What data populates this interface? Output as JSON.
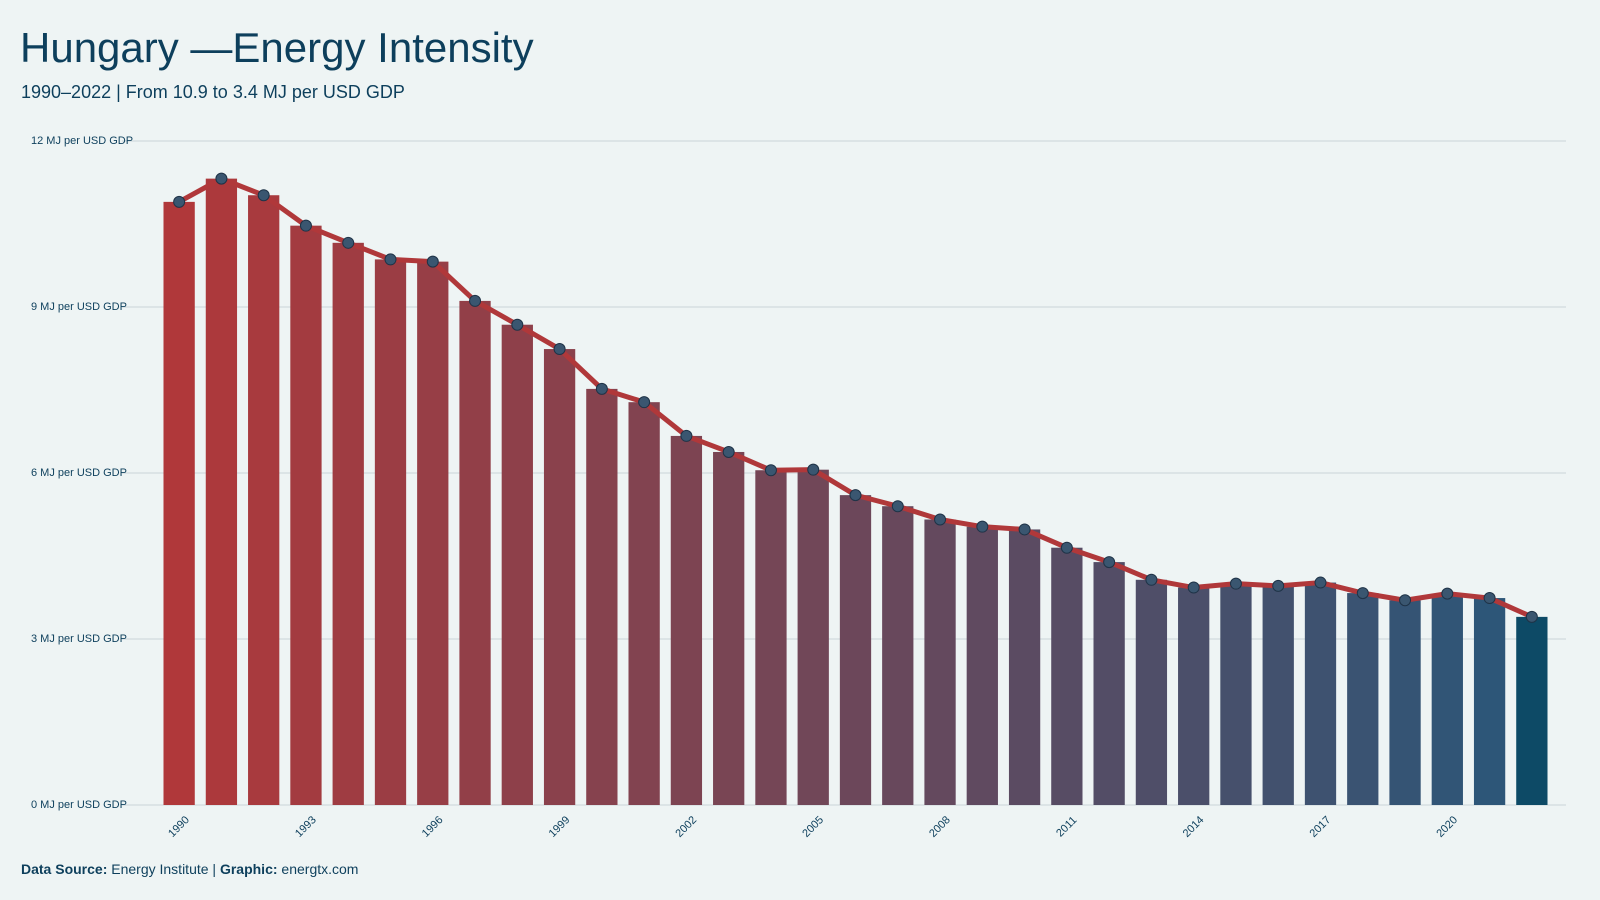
{
  "chart_data": {
    "type": "bar",
    "title": "Hungary —Energy Intensity",
    "subtitle": "1990–2022 | From 10.9 to 3.4 MJ per USD GDP",
    "categories": [
      "1990",
      null,
      null,
      "1993",
      null,
      null,
      "1996",
      null,
      null,
      "1999",
      null,
      null,
      "2002",
      null,
      null,
      "2005",
      null,
      null,
      "2008",
      null,
      null,
      "2011",
      null,
      null,
      "2014",
      null,
      null,
      "2017",
      null,
      null,
      "2020",
      null,
      null
    ],
    "values": [
      10.9,
      11.32,
      11.02,
      10.47,
      10.16,
      9.86,
      9.82,
      9.11,
      8.68,
      8.24,
      7.52,
      7.28,
      6.67,
      6.38,
      6.05,
      6.06,
      5.6,
      5.4,
      5.16,
      5.03,
      4.98,
      4.65,
      4.39,
      4.07,
      3.93,
      4.0,
      3.96,
      4.02,
      3.83,
      3.7,
      3.82,
      3.74,
      3.4
    ],
    "bar_color_start": "#b0383a",
    "bar_color_end": "#2d5678",
    "last_bar_color": "#0d4a66",
    "line_color": "#b0383a",
    "marker_color": "#3a5670",
    "ylim": [
      0,
      12
    ],
    "yticks": [
      {
        "value": 0,
        "label": "0 MJ per USD GDP"
      },
      {
        "value": 3,
        "label": "3 MJ per USD GDP"
      },
      {
        "value": 6,
        "label": "6 MJ per USD GDP"
      },
      {
        "value": 9,
        "label": "9 MJ per USD GDP"
      },
      {
        "value": 12,
        "label": "12 MJ per USD GDP"
      }
    ],
    "grid": true,
    "footer": {
      "source_label": "Data Source:",
      "source": "Energy Institute",
      "separator": "|",
      "graphic_label": "Graphic:",
      "graphic": "energtx.com"
    }
  }
}
